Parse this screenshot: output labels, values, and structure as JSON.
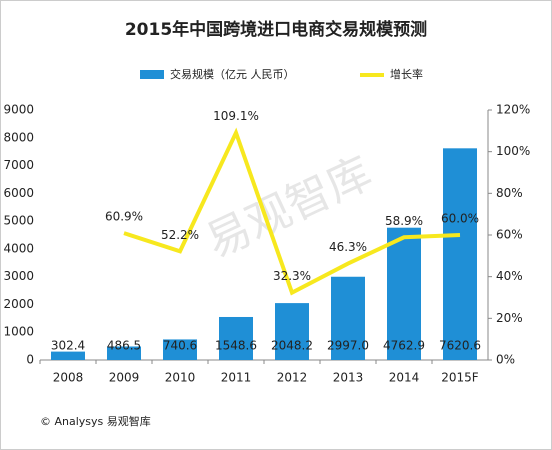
{
  "chart_data": {
    "type": "bar_line",
    "title": "2015年中国跨境进口电商交易规模预测",
    "categories": [
      "2008",
      "2009",
      "2010",
      "2011",
      "2012",
      "2013",
      "2014",
      "2015F"
    ],
    "series": [
      {
        "name": "交易规模（亿元 人民币）",
        "type": "bar",
        "color": "#1f8fd6",
        "values": [
          302.4,
          486.5,
          740.6,
          1548.6,
          2048.2,
          2997.0,
          4762.9,
          7620.6
        ],
        "value_labels": [
          "302.4",
          "486.5",
          "740.6",
          "1548.6",
          "2048.2",
          "2997.0",
          "4762.9",
          "7620.6"
        ]
      },
      {
        "name": "增长率",
        "type": "line",
        "axis": "y2",
        "color": "#f7e81e",
        "values": [
          null,
          60.9,
          52.2,
          109.1,
          32.3,
          46.3,
          58.9,
          60.0
        ],
        "value_labels": [
          null,
          "60.9%",
          "52.2%",
          "109.1%",
          "32.3%",
          "46.3%",
          "58.9%",
          "60.0%"
        ]
      }
    ],
    "ylim": [
      0,
      9000
    ],
    "yticks": [
      0,
      1000,
      2000,
      3000,
      4000,
      5000,
      6000,
      7000,
      8000,
      9000
    ],
    "y2lim": [
      0,
      120
    ],
    "y2ticks": [
      {
        "value": 0,
        "label": "0%"
      },
      {
        "value": 20,
        "label": "20%"
      },
      {
        "value": 40,
        "label": "40%"
      },
      {
        "value": 60,
        "label": "60%"
      },
      {
        "value": 80,
        "label": "80%"
      },
      {
        "value": 100,
        "label": "100%"
      },
      {
        "value": 120,
        "label": "120%"
      }
    ],
    "grid": false,
    "legend": "top",
    "source": "© Analysys 易观智库",
    "watermark": "易观智库"
  }
}
